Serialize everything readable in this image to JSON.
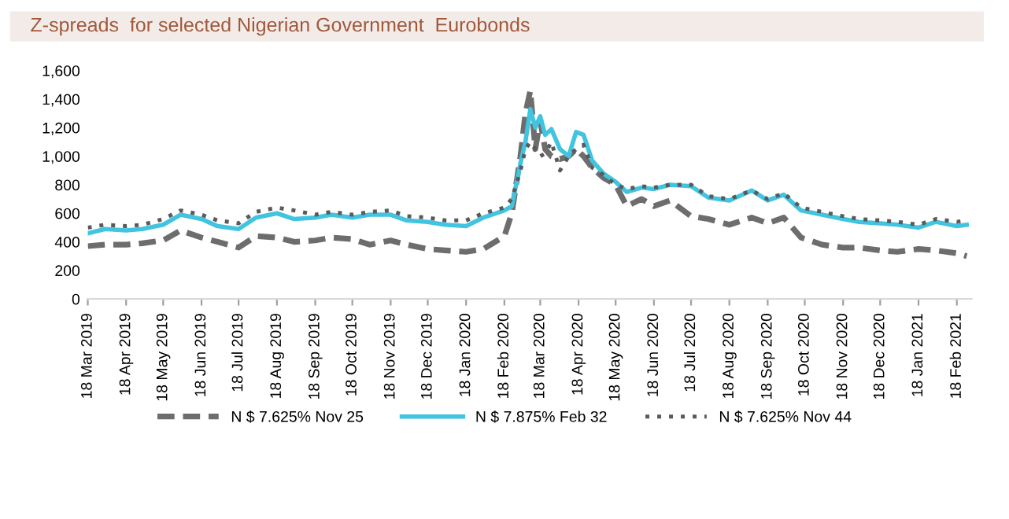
{
  "chart_data": {
    "type": "line",
    "title": "Z-spreads  for selected Nigerian Government  Eurobonds",
    "x": [
      "2019-03-18",
      "2019-04-01",
      "2019-04-18",
      "2019-05-01",
      "2019-05-18",
      "2019-06-01",
      "2019-06-18",
      "2019-07-01",
      "2019-07-18",
      "2019-08-01",
      "2019-08-18",
      "2019-09-01",
      "2019-09-18",
      "2019-10-01",
      "2019-10-18",
      "2019-11-01",
      "2019-11-18",
      "2019-12-01",
      "2019-12-18",
      "2020-01-01",
      "2020-01-18",
      "2020-02-01",
      "2020-02-18",
      "2020-02-24",
      "2020-03-02",
      "2020-03-06",
      "2020-03-10",
      "2020-03-14",
      "2020-03-18",
      "2020-03-22",
      "2020-03-27",
      "2020-04-03",
      "2020-04-10",
      "2020-04-16",
      "2020-04-22",
      "2020-04-29",
      "2020-05-08",
      "2020-05-18",
      "2020-05-27",
      "2020-06-08",
      "2020-06-18",
      "2020-07-01",
      "2020-07-18",
      "2020-08-01",
      "2020-08-18",
      "2020-09-05",
      "2020-09-18",
      "2020-10-01",
      "2020-10-15",
      "2020-11-01",
      "2020-11-18",
      "2020-12-01",
      "2020-12-18",
      "2021-01-01",
      "2021-01-18",
      "2021-02-01",
      "2021-02-18",
      "2021-02-26"
    ],
    "series": [
      {
        "name": "N $ 7.625% Nov 25",
        "color": "#6d6d6d",
        "line_style": "dashed",
        "values": [
          370,
          380,
          380,
          390,
          410,
          480,
          430,
          400,
          360,
          440,
          430,
          400,
          410,
          430,
          420,
          380,
          410,
          380,
          350,
          340,
          330,
          350,
          440,
          600,
          1000,
          1300,
          1460,
          1050,
          1250,
          1050,
          1000,
          980,
          1000,
          1050,
          1000,
          920,
          850,
          800,
          650,
          700,
          650,
          690,
          580,
          560,
          520,
          570,
          530,
          570,
          430,
          380,
          360,
          360,
          340,
          330,
          350,
          340,
          320,
          300
        ]
      },
      {
        "name": "N $ 7.875% Feb 32",
        "color": "#41c4e0",
        "line_style": "solid",
        "values": [
          460,
          490,
          480,
          490,
          520,
          590,
          560,
          510,
          490,
          570,
          600,
          560,
          570,
          590,
          570,
          590,
          590,
          550,
          540,
          520,
          510,
          570,
          620,
          650,
          950,
          1100,
          1330,
          1200,
          1280,
          1150,
          1190,
          1050,
          1000,
          1170,
          1150,
          970,
          880,
          820,
          750,
          780,
          770,
          800,
          790,
          710,
          690,
          760,
          690,
          730,
          620,
          590,
          560,
          540,
          530,
          520,
          500,
          540,
          510,
          520
        ]
      },
      {
        "name": "N $ 7.625% Nov 44",
        "color": "#5a5a5a",
        "line_style": "dotted",
        "values": [
          500,
          520,
          510,
          520,
          560,
          620,
          590,
          550,
          530,
          610,
          640,
          620,
          590,
          610,
          590,
          610,
          620,
          580,
          570,
          550,
          550,
          600,
          640,
          700,
          900,
          1050,
          1100,
          1050,
          1000,
          1020,
          1100,
          900,
          1000,
          1050,
          1080,
          920,
          870,
          800,
          770,
          790,
          780,
          800,
          800,
          720,
          700,
          760,
          700,
          740,
          640,
          610,
          580,
          560,
          550,
          540,
          520,
          560,
          540,
          550
        ]
      }
    ],
    "xlim": [
      "2019-03-18",
      "2021-03-02"
    ],
    "xticks": [
      {
        "value": "2019-03-18",
        "label": "18 Mar 2019"
      },
      {
        "value": "2019-04-18",
        "label": "18 Apr 2019"
      },
      {
        "value": "2019-05-18",
        "label": "18 May 2019"
      },
      {
        "value": "2019-06-18",
        "label": "18 Jun 2019"
      },
      {
        "value": "2019-07-18",
        "label": "18 Jul 2019"
      },
      {
        "value": "2019-08-18",
        "label": "18 Aug 2019"
      },
      {
        "value": "2019-09-18",
        "label": "18 Sep 2019"
      },
      {
        "value": "2019-10-18",
        "label": "18 Oct 2019"
      },
      {
        "value": "2019-11-18",
        "label": "18 Nov 2019"
      },
      {
        "value": "2019-12-18",
        "label": "18 Dec 2019"
      },
      {
        "value": "2020-01-18",
        "label": "18 Jan 2020"
      },
      {
        "value": "2020-02-18",
        "label": "18 Feb 2020"
      },
      {
        "value": "2020-03-18",
        "label": "18 Mar 2020"
      },
      {
        "value": "2020-04-18",
        "label": "18 Apr 2020"
      },
      {
        "value": "2020-05-18",
        "label": "18 May 2020"
      },
      {
        "value": "2020-06-18",
        "label": "18 Jun 2020"
      },
      {
        "value": "2020-07-18",
        "label": "18 Jul 2020"
      },
      {
        "value": "2020-08-18",
        "label": "18 Aug 2020"
      },
      {
        "value": "2020-09-18",
        "label": "18 Sep 2020"
      },
      {
        "value": "2020-10-18",
        "label": "18 Oct 2020"
      },
      {
        "value": "2020-11-18",
        "label": "18 Nov 2020"
      },
      {
        "value": "2020-12-18",
        "label": "18 Dec 2020"
      },
      {
        "value": "2021-01-18",
        "label": "18 Jan 2021"
      },
      {
        "value": "2021-02-18",
        "label": "18 Feb 2021"
      }
    ],
    "ylim": [
      0,
      1600
    ],
    "yticks": [
      0,
      200,
      400,
      600,
      800,
      {
        "value": 1000,
        "label": "1,000"
      },
      {
        "value": 1200,
        "label": "1,200"
      },
      {
        "value": 1400,
        "label": "1,400"
      },
      {
        "value": 1600,
        "label": "1,600"
      }
    ],
    "grid": false,
    "legend": "bottom",
    "marker": "none"
  }
}
